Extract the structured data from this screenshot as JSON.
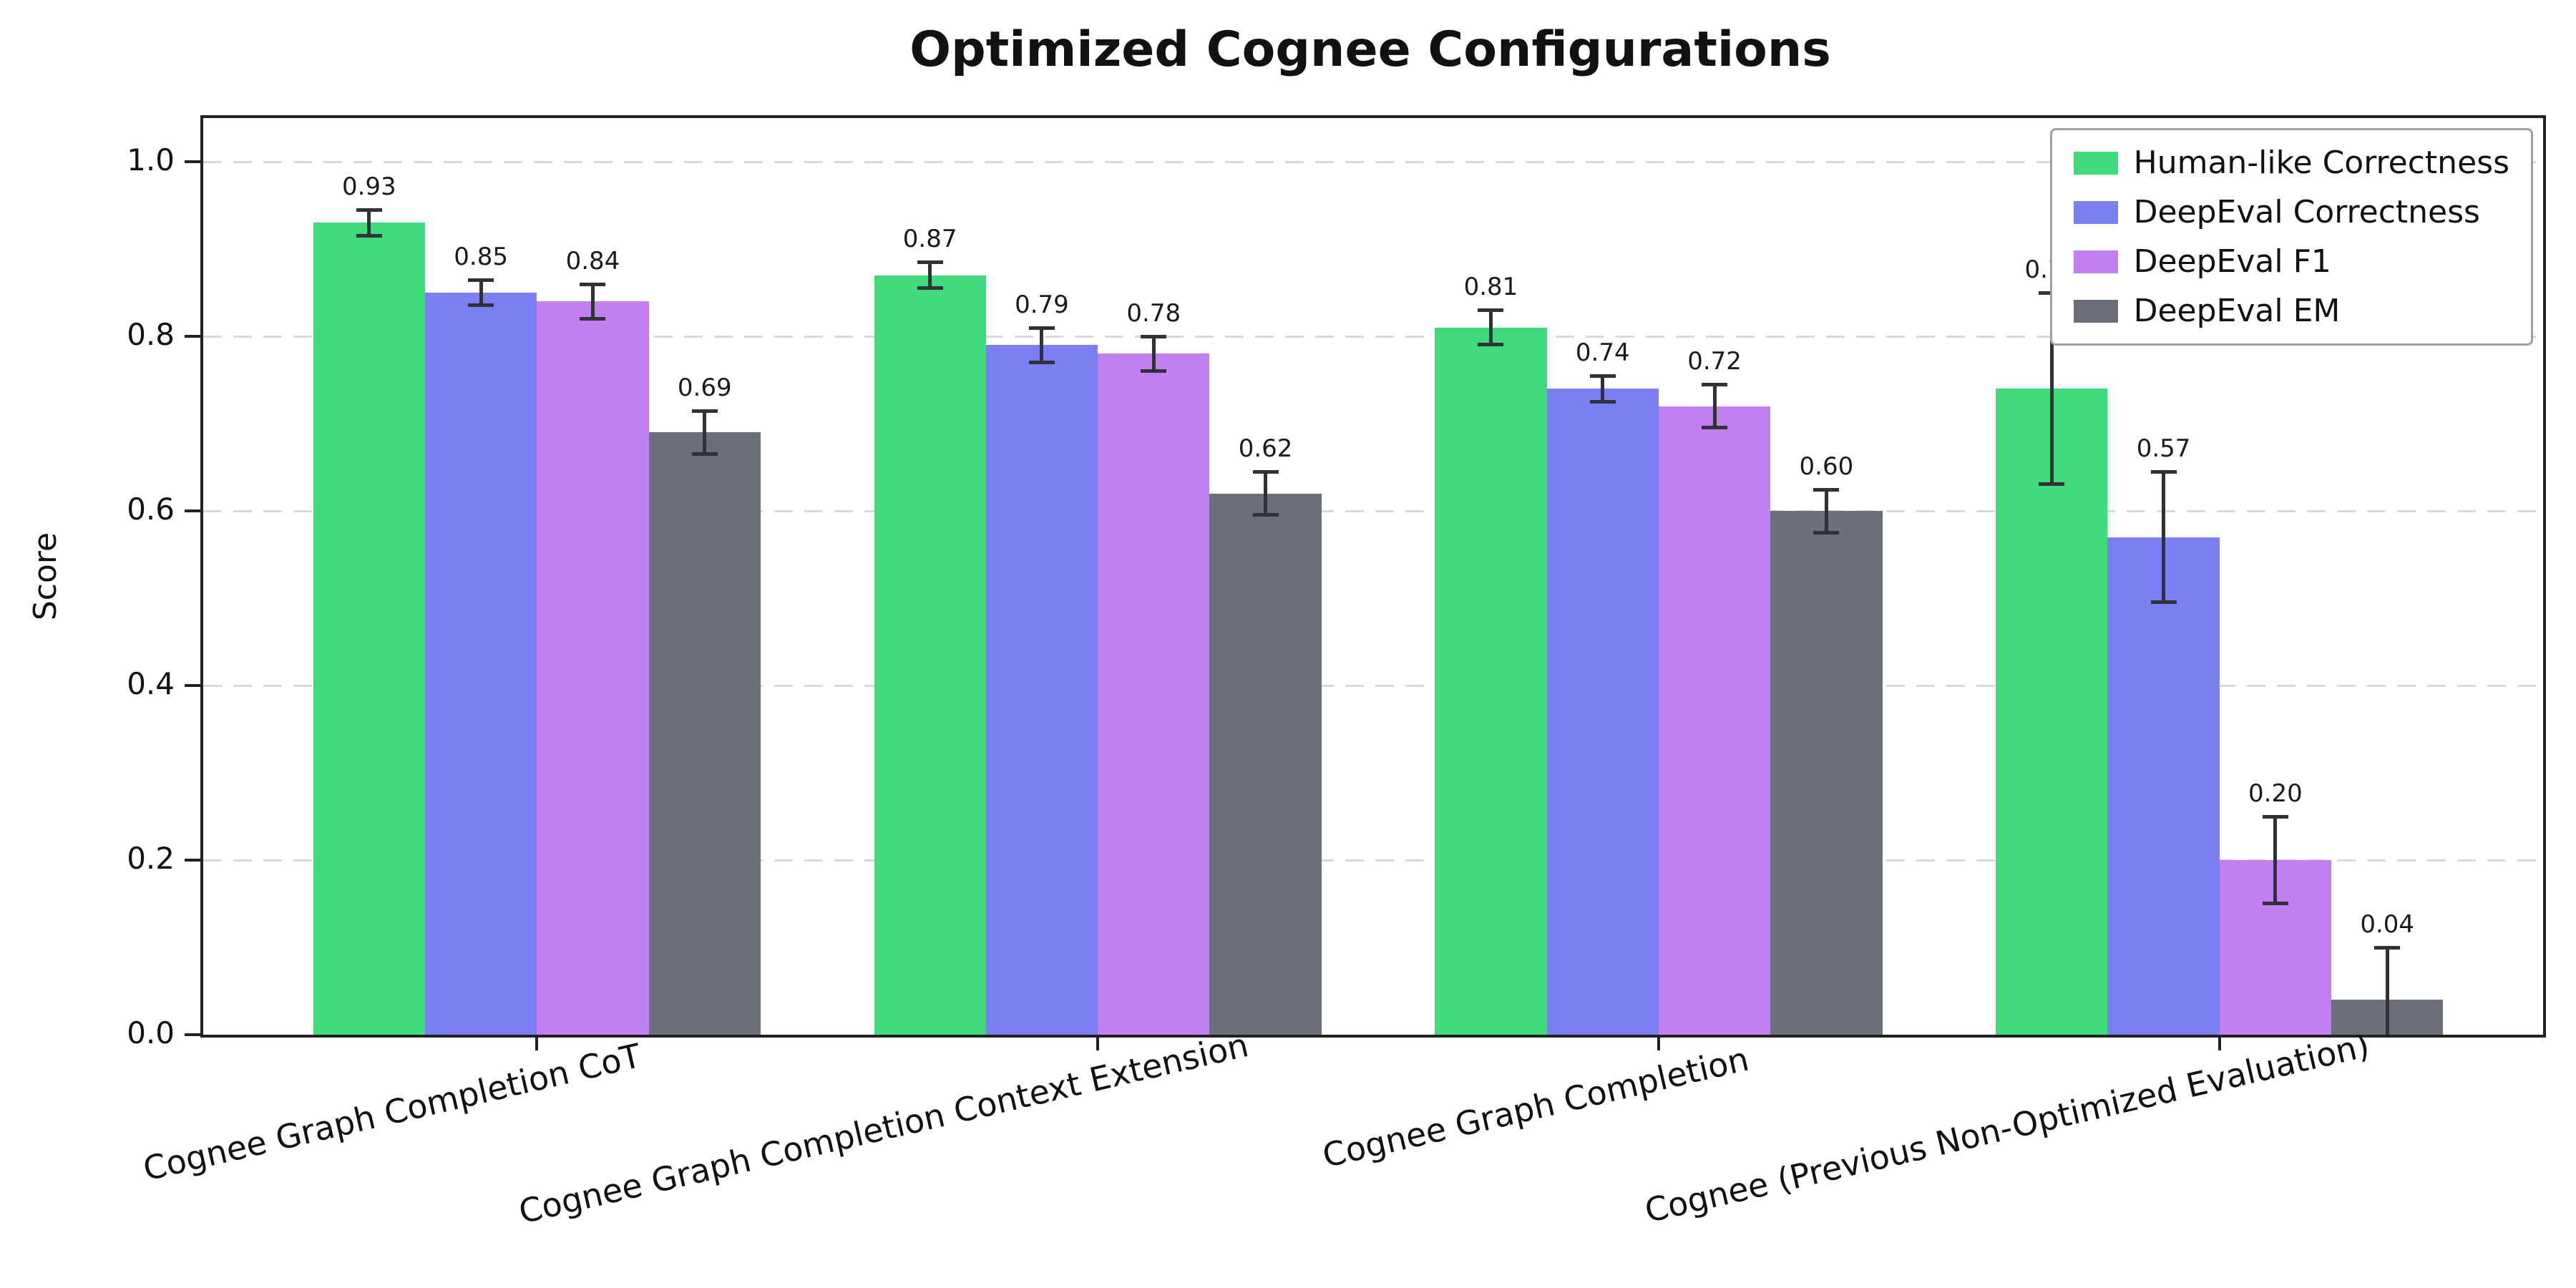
{
  "chart_data": {
    "type": "bar",
    "title": "Optimized Cognee Configurations",
    "xlabel": "",
    "ylabel": "Score",
    "ylim": [
      0,
      1.05
    ],
    "yticks": [
      0.0,
      0.2,
      0.4,
      0.6,
      0.8,
      1.0
    ],
    "grid": "horizontal dashed",
    "legend_position": "upper right",
    "error_bars": true,
    "categories": [
      "Cognee Graph Completion CoT",
      "Cognee Graph Completion Context Extension",
      "Cognee Graph Completion",
      "Cognee (Previous Non-Optimized Evaluation)"
    ],
    "series": [
      {
        "name": "Human-like Correctness",
        "color": "#40d97c",
        "values": [
          0.93,
          0.87,
          0.81,
          0.74
        ],
        "errors": [
          0.015,
          0.015,
          0.02,
          0.11
        ]
      },
      {
        "name": "DeepEval Correctness",
        "color": "#7b7ff2",
        "values": [
          0.85,
          0.79,
          0.74,
          0.57
        ],
        "errors": [
          0.015,
          0.02,
          0.015,
          0.075
        ]
      },
      {
        "name": "DeepEval F1",
        "color": "#c17ff0",
        "values": [
          0.84,
          0.78,
          0.72,
          0.2
        ],
        "errors": [
          0.02,
          0.02,
          0.025,
          0.05
        ]
      },
      {
        "name": "DeepEval EM",
        "color": "#6b6f7a",
        "values": [
          0.69,
          0.62,
          0.6,
          0.04
        ],
        "errors": [
          0.025,
          0.025,
          0.025,
          0.06
        ]
      }
    ]
  }
}
